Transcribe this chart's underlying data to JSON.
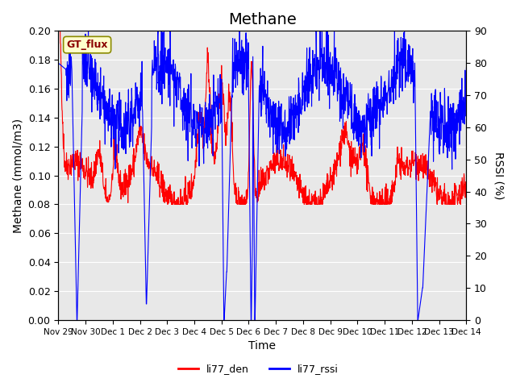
{
  "title": "Methane",
  "ylabel_left": "Methane (mmol/m3)",
  "ylabel_right": "RSSI (%)",
  "xlabel": "Time",
  "annotation": "GT_flux",
  "ylim_left": [
    0.0,
    0.2
  ],
  "ylim_right": [
    0,
    90
  ],
  "yticks_left": [
    0.0,
    0.02,
    0.04,
    0.06,
    0.08,
    0.1,
    0.12,
    0.14,
    0.16,
    0.18,
    0.2
  ],
  "yticks_right": [
    0,
    10,
    20,
    30,
    40,
    50,
    60,
    70,
    80,
    90
  ],
  "xtick_labels": [
    "Nov 29",
    "Nov 30",
    "Dec 1",
    "Dec 2",
    "Dec 3",
    "Dec 4",
    "Dec 5",
    "Dec 6",
    "Dec 7",
    "Dec 8",
    "Dec 9",
    "Dec 10",
    "Dec 11",
    "Dec 12",
    "Dec 13",
    "Dec 14"
  ],
  "color_red": "#FF0000",
  "color_blue": "#0000FF",
  "bg_color": "#E8E8E8",
  "legend_label_red": "li77_den",
  "legend_label_blue": "li77_rssi",
  "title_fontsize": 14,
  "label_fontsize": 10,
  "tick_fontsize": 9
}
